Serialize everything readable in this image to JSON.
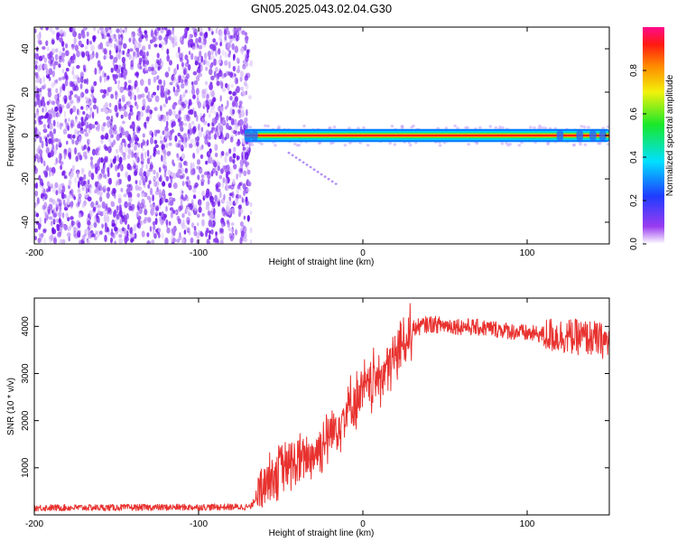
{
  "title": "GN05.2025.043.02.04.G30",
  "colors": {
    "snr_line": "#e8322f",
    "scatter_dots": "#7f26ee",
    "band_core": "#ff1010",
    "band_edge": "#0a7cff"
  },
  "chart_data": [
    {
      "type": "heatmap",
      "xlabel": "Height of straight line (km)",
      "ylabel": "Frequency (Hz)",
      "xlim": [
        -200,
        150
      ],
      "ylim": [
        -50,
        50
      ],
      "x_ticks": [
        -200,
        -100,
        0,
        100
      ],
      "y_ticks": [
        -40,
        -20,
        0,
        20,
        40
      ],
      "colorbar": {
        "label": "Normalized spectral amplitude",
        "range": [
          0,
          1
        ],
        "ticks": [
          "0.0",
          "0.2",
          "0.4",
          "0.6",
          "0.8"
        ],
        "colormap": "rainbow (white-violet-blue-cyan-green-yellow-orange-red-magenta)"
      },
      "description_regions": {
        "noise_region_x": [
          -200,
          -68
        ],
        "signal_band_x": [
          -72,
          150
        ],
        "signal_band_center_hz": 0,
        "signal_band_halfwidth_hz": 3
      }
    },
    {
      "type": "line",
      "xlabel": "Height of straight line (km)",
      "ylabel": "SNR (10 * v/v)",
      "xlim": [
        -200,
        150
      ],
      "ylim": [
        0,
        4600
      ],
      "x_ticks": [
        -200,
        -100,
        0,
        100
      ],
      "y_ticks": [
        1000,
        2000,
        3000,
        4000
      ],
      "series": [
        {
          "color": "#e8322f",
          "envelope_points": {
            "x": [
              -200,
              -120,
              -68,
              -62,
              -55,
              -40,
              -30,
              -20,
              -10,
              0,
              10,
              20,
              25,
              30,
              40,
              60,
              80,
              100,
              120,
              140,
              150
            ],
            "y": [
              150,
              160,
              170,
              600,
              900,
              1100,
              1300,
              1700,
              2200,
              2600,
              2950,
              3350,
              3700,
              3950,
              4050,
              4000,
              3950,
              3850,
              3800,
              3750,
              3650
            ]
          }
        }
      ]
    }
  ]
}
